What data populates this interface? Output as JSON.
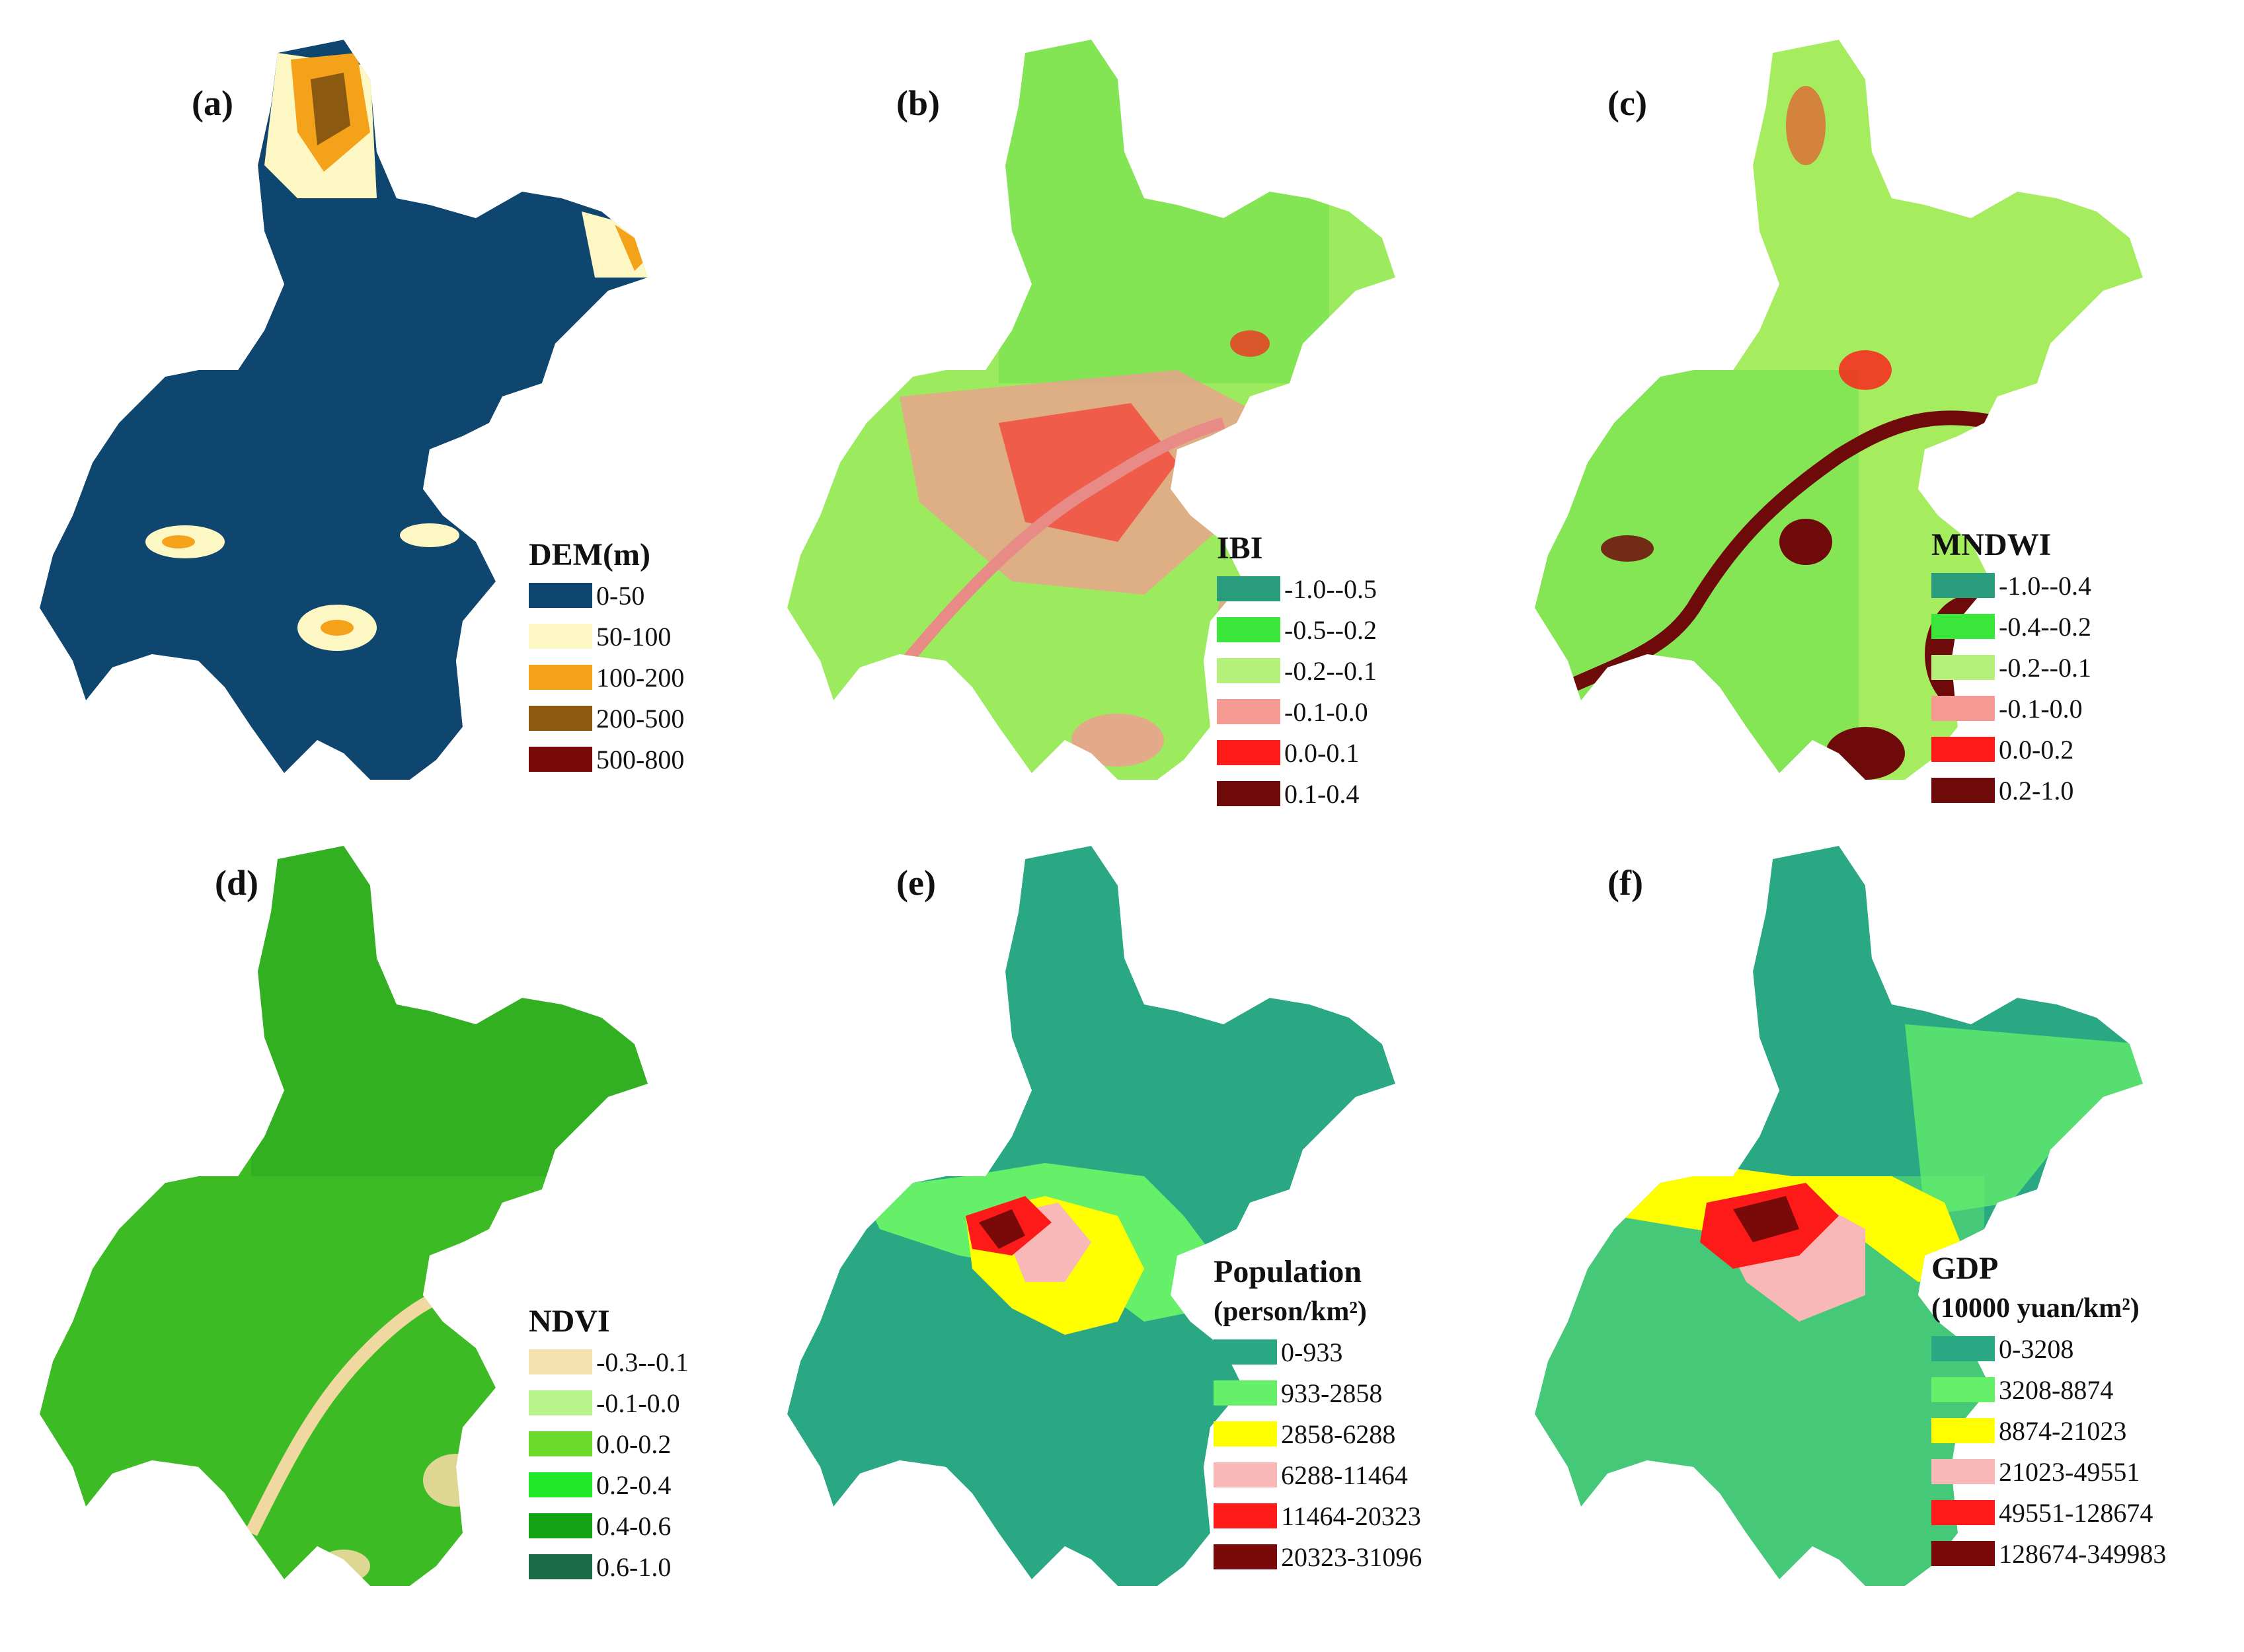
{
  "panels": [
    {
      "id": "a",
      "label": "(a)",
      "legend_title": "DEM(m)",
      "legend_subtitle": "",
      "map_base": "#0e4670",
      "legend": [
        {
          "label": "0-50",
          "color": "#0e4670"
        },
        {
          "label": "50-100",
          "color": "#fdf7c4"
        },
        {
          "label": "100-200",
          "color": "#f5a21b"
        },
        {
          "label": "200-500",
          "color": "#8b5a10"
        },
        {
          "label": "500-800",
          "color": "#7a0a0a"
        }
      ]
    },
    {
      "id": "b",
      "label": "(b)",
      "legend_title": "IBI",
      "legend_subtitle": "",
      "map_base": "#9ceb5e",
      "legend": [
        {
          "label": "-1.0--0.5",
          "color": "#2a9d7c"
        },
        {
          "label": "-0.5--0.2",
          "color": "#3be63b"
        },
        {
          "label": "-0.2--0.1",
          "color": "#b4f07a"
        },
        {
          "label": "-0.1-0.0",
          "color": "#f49a93"
        },
        {
          "label": "0.0-0.1",
          "color": "#ff1a1a"
        },
        {
          "label": "0.1-0.4",
          "color": "#6e0a0a"
        }
      ]
    },
    {
      "id": "c",
      "label": "(c)",
      "legend_title": "MNDWI",
      "legend_subtitle": "",
      "map_base": "#a6ec5f",
      "legend": [
        {
          "label": "-1.0--0.4",
          "color": "#2a9d7c"
        },
        {
          "label": "-0.4--0.2",
          "color": "#3be63b"
        },
        {
          "label": "-0.2--0.1",
          "color": "#b4f07a"
        },
        {
          "label": "-0.1-0.0",
          "color": "#f49a93"
        },
        {
          "label": "0.0-0.2",
          "color": "#ff1a1a"
        },
        {
          "label": "0.2-1.0",
          "color": "#6e0a0a"
        }
      ]
    },
    {
      "id": "d",
      "label": "(d)",
      "legend_title": "NDVI",
      "legend_subtitle": "",
      "map_base": "#3dbb25",
      "legend": [
        {
          "label": "-0.3--0.1",
          "color": "#f5e1b0"
        },
        {
          "label": "-0.1-0.0",
          "color": "#b8f28a"
        },
        {
          "label": "0.0-0.2",
          "color": "#6bd92a"
        },
        {
          "label": "0.2-0.4",
          "color": "#22e82a"
        },
        {
          "label": "0.4-0.6",
          "color": "#14a314"
        },
        {
          "label": "0.6-1.0",
          "color": "#1b6b48"
        }
      ]
    },
    {
      "id": "e",
      "label": "(e)",
      "legend_title": "Population",
      "legend_subtitle": "(person/km²)",
      "map_base": "#2aa883",
      "legend": [
        {
          "label": "0-933",
          "color": "#2aa883"
        },
        {
          "label": "933-2858",
          "color": "#66f06a"
        },
        {
          "label": "2858-6288",
          "color": "#ffff00"
        },
        {
          "label": "6288-11464",
          "color": "#f8b8b8"
        },
        {
          "label": "11464-20323",
          "color": "#ff1a1a"
        },
        {
          "label": "20323-31096",
          "color": "#7a0a0a"
        }
      ]
    },
    {
      "id": "f",
      "label": "(f)",
      "legend_title": "GDP",
      "legend_subtitle": "(10000 yuan/km²)",
      "map_base": "#2aa883",
      "legend": [
        {
          "label": "0-3208",
          "color": "#2aa883"
        },
        {
          "label": "3208-8874",
          "color": "#66f06a"
        },
        {
          "label": "8874-21023",
          "color": "#ffff00"
        },
        {
          "label": "21023-49551",
          "color": "#f8b8b8"
        },
        {
          "label": "49551-128674",
          "color": "#ff1a1a"
        },
        {
          "label": "128674-349983",
          "color": "#7a0a0a"
        }
      ]
    }
  ]
}
